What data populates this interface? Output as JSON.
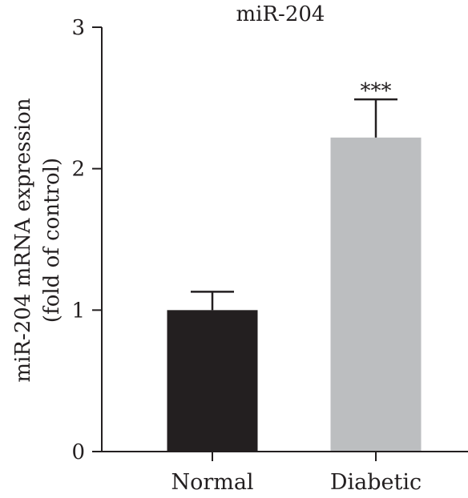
{
  "chart_data": {
    "type": "bar",
    "title": "miR-204",
    "ylabel_lines": [
      "miR-204 mRNA expression",
      "(fold of control)"
    ],
    "xlabel": "",
    "categories": [
      "Normal",
      "Diabetic"
    ],
    "values": [
      1.0,
      2.22
    ],
    "error_plus": [
      0.13,
      0.27
    ],
    "significance": [
      "",
      "***"
    ],
    "bar_colors": [
      "#231f20",
      "#bcbec0"
    ],
    "ylim": [
      0,
      3
    ],
    "yticks": [
      0,
      1,
      2,
      3
    ],
    "ytick_labels": [
      "0",
      "1",
      "2",
      "3"
    ],
    "grid": false,
    "legend": "none"
  }
}
